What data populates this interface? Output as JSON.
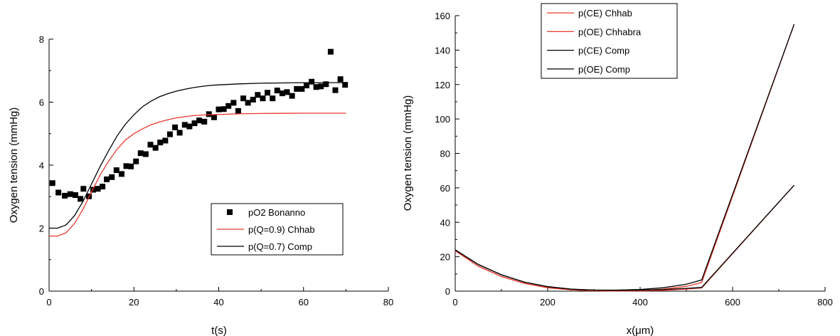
{
  "chart_data": [
    {
      "type": "scatter",
      "xlabel": "t(s)",
      "ylabel": "Oxygen tension (mmHg)",
      "xlim": [
        0,
        80
      ],
      "ylim": [
        0,
        8
      ],
      "xticks": [
        0,
        20,
        40,
        60,
        80
      ],
      "yticks": [
        0,
        2,
        4,
        6,
        8
      ],
      "grid": false,
      "legend_position": "bottom-right",
      "series": [
        {
          "name": "pO2 Bonanno",
          "kind": "markers",
          "color": "#000000",
          "x": [
            0.8,
            2.2,
            3.7,
            5,
            6.2,
            7.4,
            8.1,
            9.4,
            10.4,
            11.5,
            12.6,
            13.6,
            14.8,
            15.9,
            17.1,
            18.2,
            19.3,
            20.5,
            21.6,
            22.8,
            23.9,
            25.1,
            26.2,
            27.4,
            28.5,
            29.7,
            30.8,
            32,
            33.1,
            34.3,
            35.4,
            36.6,
            37.7,
            38.9,
            40,
            41.2,
            42.3,
            43.5,
            44.6,
            45.8,
            46.9,
            48.1,
            49.2,
            50.4,
            51.5,
            52.7,
            53.8,
            55,
            56.1,
            57.3,
            58.4,
            59.6,
            60.7,
            61.9,
            63,
            64.1,
            65.3,
            66.4,
            67.5,
            68.7,
            69.8
          ],
          "y": [
            3.43,
            3.13,
            3.03,
            3.08,
            3.05,
            2.93,
            3.25,
            3.01,
            3.22,
            3.25,
            3.32,
            3.55,
            3.62,
            3.84,
            3.72,
            3.97,
            3.96,
            4.12,
            4.38,
            4.35,
            4.65,
            4.55,
            4.72,
            4.78,
            4.98,
            5.2,
            5.03,
            5.28,
            5.23,
            5.33,
            5.42,
            5.38,
            5.62,
            5.52,
            5.77,
            5.78,
            5.88,
            5.98,
            5.72,
            6.12,
            5.98,
            6.08,
            6.23,
            6.12,
            6.3,
            6.12,
            6.37,
            6.28,
            6.32,
            6.2,
            6.42,
            6.42,
            6.53,
            6.65,
            6.48,
            6.5,
            6.57,
            7.6,
            6.38,
            6.73,
            6.55
          ]
        },
        {
          "name": "p(Q=0.9) Chhab",
          "kind": "line",
          "color": "#e8392c",
          "x": [
            0,
            2,
            4,
            6,
            8,
            10,
            12,
            14,
            16,
            18,
            20,
            22,
            24,
            26,
            28,
            30,
            32,
            34,
            36,
            38,
            40,
            45,
            50,
            55,
            60,
            65,
            70
          ],
          "y": [
            1.75,
            1.75,
            1.85,
            2.15,
            2.6,
            3.15,
            3.68,
            4.12,
            4.5,
            4.8,
            5.0,
            5.15,
            5.28,
            5.37,
            5.44,
            5.5,
            5.54,
            5.57,
            5.59,
            5.6,
            5.61,
            5.63,
            5.64,
            5.645,
            5.65,
            5.65,
            5.65
          ]
        },
        {
          "name": "p(Q=0.7) Comp",
          "kind": "line",
          "color": "#000000",
          "x": [
            0,
            2,
            4,
            6,
            8,
            10,
            12,
            14,
            16,
            18,
            20,
            22,
            24,
            26,
            28,
            30,
            32,
            34,
            36,
            38,
            40,
            45,
            50,
            55,
            60,
            65,
            70
          ],
          "y": [
            2.0,
            2.0,
            2.1,
            2.4,
            2.85,
            3.4,
            3.95,
            4.45,
            4.92,
            5.3,
            5.6,
            5.85,
            6.03,
            6.17,
            6.27,
            6.35,
            6.41,
            6.46,
            6.5,
            6.53,
            6.55,
            6.58,
            6.6,
            6.61,
            6.62,
            6.62,
            6.62
          ]
        }
      ]
    },
    {
      "type": "line",
      "xlabel": "x(μm)",
      "ylabel": "Oxygen tension (mmHg)",
      "xlim": [
        0,
        800
      ],
      "ylim": [
        0,
        160
      ],
      "xticks": [
        0,
        200,
        400,
        600,
        800
      ],
      "yticks": [
        0,
        20,
        40,
        60,
        80,
        100,
        120,
        140,
        160
      ],
      "grid": false,
      "legend_position": "top-center",
      "series": [
        {
          "name": "p(CE) Chhab",
          "color": "#e8392c",
          "x": [
            0,
            50,
            100,
            150,
            200,
            250,
            300,
            350,
            400,
            450,
            500,
            533,
            733
          ],
          "y": [
            23.5,
            14.5,
            8.5,
            4.5,
            2,
            0.8,
            0.3,
            0.2,
            0.4,
            1.2,
            2.8,
            5,
            155
          ]
        },
        {
          "name": "p(OE) Chhabra",
          "color": "#e8392c",
          "x": [
            0,
            50,
            100,
            150,
            200,
            250,
            300,
            350,
            400,
            450,
            500,
            533,
            733
          ],
          "y": [
            23.5,
            14.5,
            8.5,
            4.5,
            2,
            0.8,
            0.3,
            0.1,
            0.2,
            0.5,
            1.2,
            1.8,
            61.5
          ]
        },
        {
          "name": "p(CE) Comp",
          "color": "#000000",
          "x": [
            0,
            50,
            100,
            150,
            200,
            250,
            300,
            350,
            400,
            450,
            500,
            533,
            733
          ],
          "y": [
            24,
            15.5,
            9.5,
            5.2,
            2.6,
            1.2,
            0.6,
            0.6,
            1,
            2,
            4,
            6.5,
            155
          ]
        },
        {
          "name": "p(OE) Comp",
          "color": "#000000",
          "x": [
            0,
            50,
            100,
            150,
            200,
            250,
            300,
            350,
            400,
            450,
            500,
            533,
            733
          ],
          "y": [
            24,
            15.5,
            9.5,
            5.2,
            2.6,
            1.2,
            0.6,
            0.4,
            0.6,
            1,
            1.6,
            2.2,
            61.5
          ]
        }
      ]
    }
  ]
}
